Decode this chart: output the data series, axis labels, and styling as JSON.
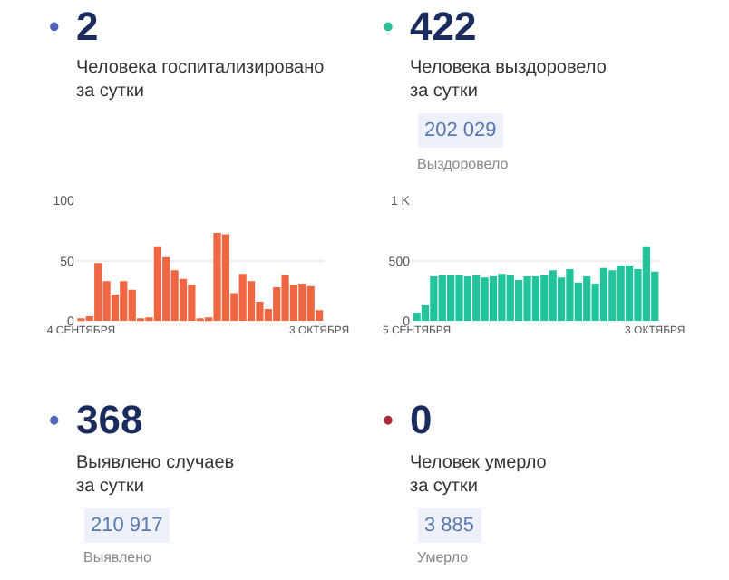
{
  "chart_data": [
    {
      "type": "other",
      "title": "2",
      "subtitle": "Человека госпитализировано\nза сутки",
      "color": "#4e62b8"
    },
    {
      "type": "other",
      "title": "422",
      "subtitle": "Человека выздоровело\nза сутки",
      "color": "#2bbf98",
      "annotations": [
        "202 029",
        "Выздоровело"
      ]
    },
    {
      "type": "bar",
      "categories": [
        "4 СЕНТЯБРЯ",
        null,
        null,
        null,
        null,
        null,
        null,
        null,
        null,
        null,
        null,
        null,
        null,
        null,
        null,
        null,
        null,
        null,
        null,
        null,
        null,
        null,
        null,
        null,
        null,
        null,
        null,
        null,
        "3 ОКТЯБРЯ"
      ],
      "values": [
        2,
        4,
        48,
        33,
        22,
        33,
        26,
        1,
        3,
        62,
        53,
        42,
        35,
        30,
        1,
        3,
        73,
        72,
        23,
        39,
        33,
        16,
        10,
        28,
        38,
        30,
        31,
        29,
        9
      ],
      "color": "#ef6742",
      "ylim": [
        0,
        100
      ],
      "yticks": [
        0,
        50,
        100
      ],
      "grid": "y"
    },
    {
      "type": "bar",
      "categories": [
        "5 СЕНТЯБРЯ",
        null,
        null,
        null,
        null,
        null,
        null,
        null,
        null,
        null,
        null,
        null,
        null,
        null,
        null,
        null,
        null,
        null,
        null,
        null,
        null,
        null,
        null,
        null,
        null,
        null,
        null,
        null,
        "3 ОКТЯБРЯ"
      ],
      "values": [
        70,
        130,
        370,
        380,
        380,
        380,
        370,
        380,
        360,
        370,
        390,
        380,
        340,
        370,
        370,
        380,
        420,
        360,
        430,
        320,
        370,
        310,
        440,
        420,
        460,
        460,
        430,
        620,
        410
      ],
      "color": "#23c49b",
      "ylim": [
        0,
        1000
      ],
      "yticks": [
        0,
        500,
        {
          "value": 1000,
          "label": "1 K"
        }
      ],
      "grid": "y"
    },
    {
      "type": "other",
      "title": "368",
      "subtitle": "Выявлено случаев\nза сутки",
      "color": "#5066b8",
      "annotations": [
        "210 917",
        "Выявлено"
      ]
    },
    {
      "type": "other",
      "title": "0",
      "subtitle": "Человек умерло\nза сутки",
      "color": "#b0283a",
      "annotations": [
        "3 885",
        "Умерло"
      ]
    }
  ]
}
